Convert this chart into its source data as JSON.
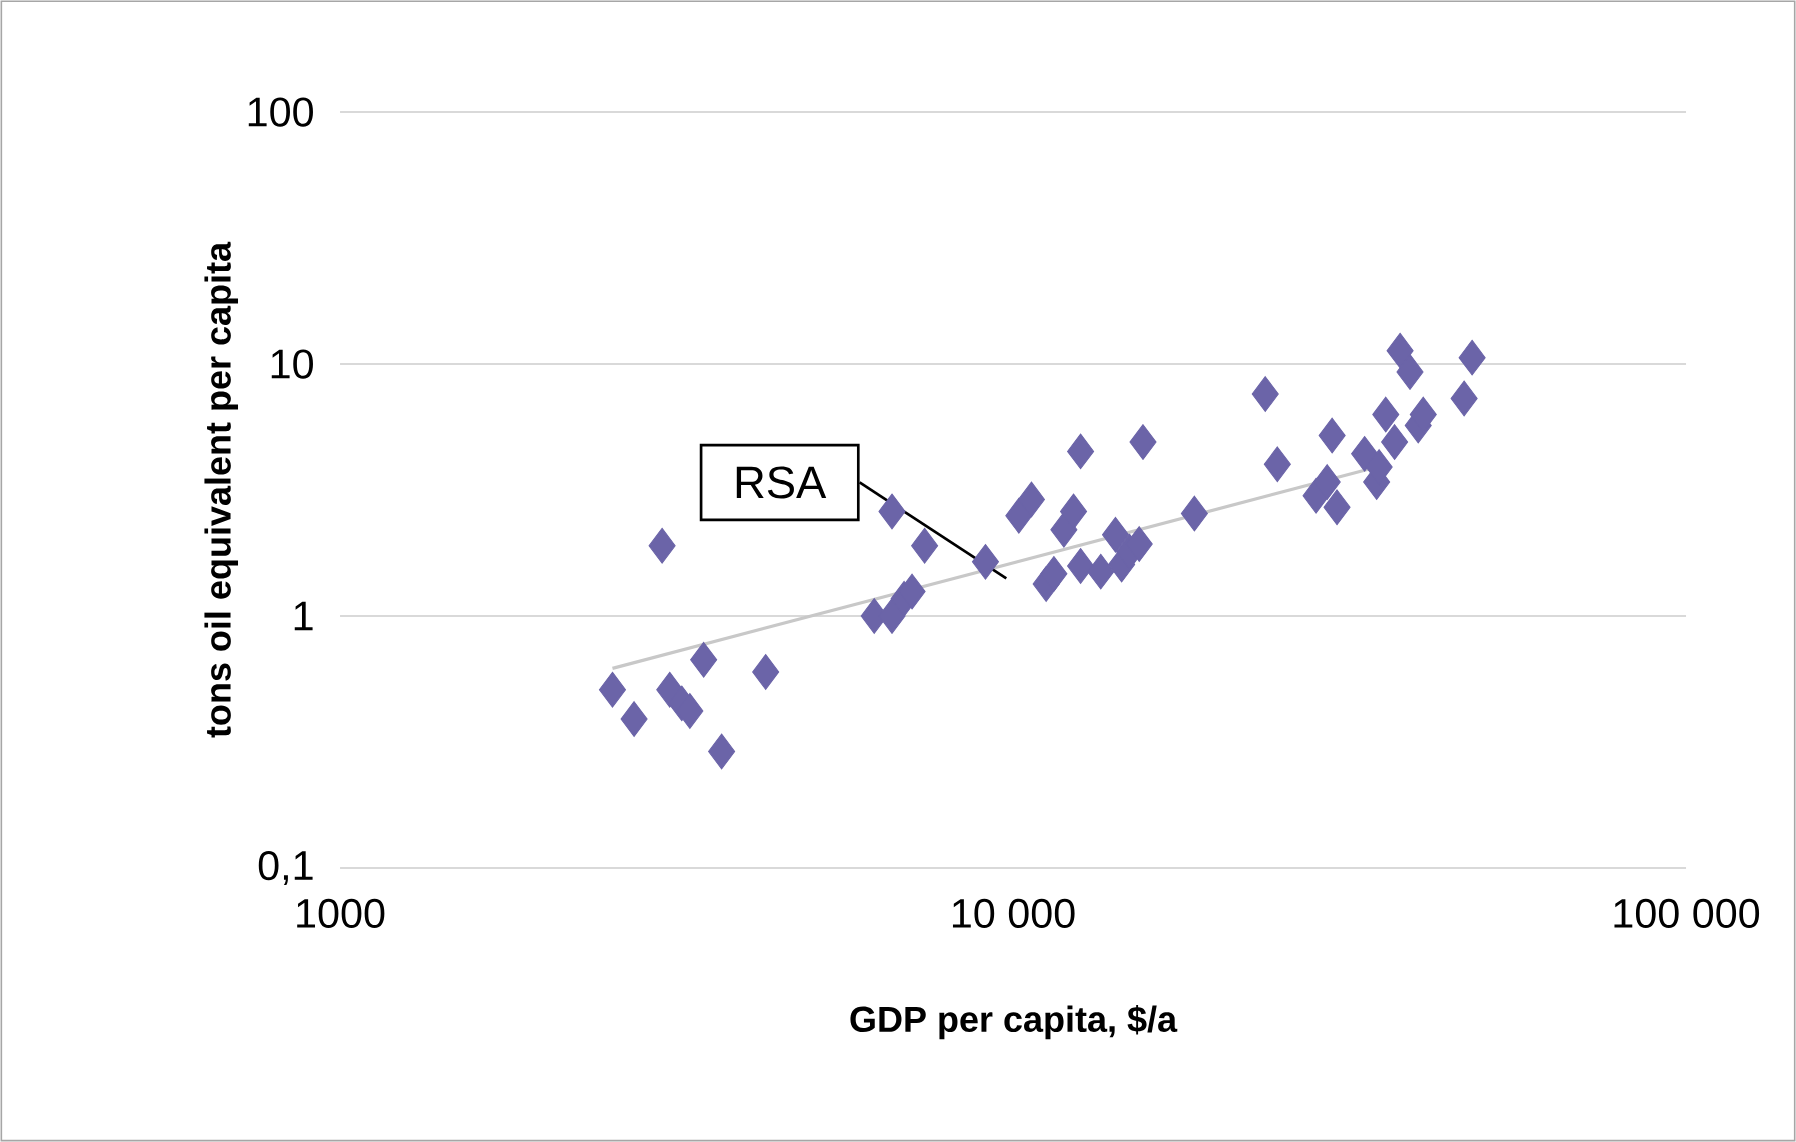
{
  "chart_data": {
    "type": "scatter",
    "xlabel": "GDP per capita, $/a",
    "ylabel": "tons oil equivalent per capita",
    "log": "xy",
    "grid": "y",
    "xlim": [
      1000,
      100000
    ],
    "ylim": [
      0.1,
      100
    ],
    "xticks": [
      1000,
      {
        "value": 10000,
        "label": "10 000"
      },
      {
        "value": 100000,
        "label": "100 000"
      }
    ],
    "yticks": [
      {
        "value": 0.1,
        "label": "0,1"
      },
      1,
      10,
      100
    ],
    "annotations": [
      "RSA"
    ],
    "series": [
      {
        "color": "#6b64a8",
        "marker": "diamond",
        "x": [
          2540,
          2735,
          3010,
          3090,
          3220,
          3310,
          3470,
          3690,
          4290,
          6220,
          6610,
          6610,
          6890,
          7080,
          7390,
          9100,
          10200,
          10650,
          11200,
          11500,
          11900,
          12600,
          12300,
          12600,
          13500,
          14200,
          14500,
          14900,
          15400,
          15600,
          18600,
          23700,
          24700,
          28200,
          29300,
          30300,
          29800,
          33300,
          34700,
          35000,
          35800,
          36900,
          37600,
          38900,
          40000,
          40700,
          46800,
          48100
        ],
        "values": [
          0.51,
          0.39,
          1.9,
          0.51,
          0.45,
          0.42,
          0.67,
          0.29,
          0.6,
          1.0,
          1.0,
          2.6,
          1.17,
          1.25,
          1.9,
          1.64,
          2.5,
          2.9,
          1.34,
          1.47,
          2.2,
          1.58,
          2.6,
          4.5,
          1.5,
          2.1,
          1.6,
          1.8,
          1.93,
          4.9,
          2.55,
          7.6,
          4.0,
          3.0,
          3.4,
          2.7,
          5.2,
          4.4,
          3.4,
          3.9,
          6.3,
          4.9,
          11.3,
          9.3,
          5.7,
          6.3,
          7.3,
          10.6
        ]
      },
      {
        "type": "line",
        "color": "#c8c8c8",
        "marker": "none",
        "x": [
          2540,
          36000
        ],
        "values": [
          0.62,
          4.0
        ]
      }
    ]
  }
}
